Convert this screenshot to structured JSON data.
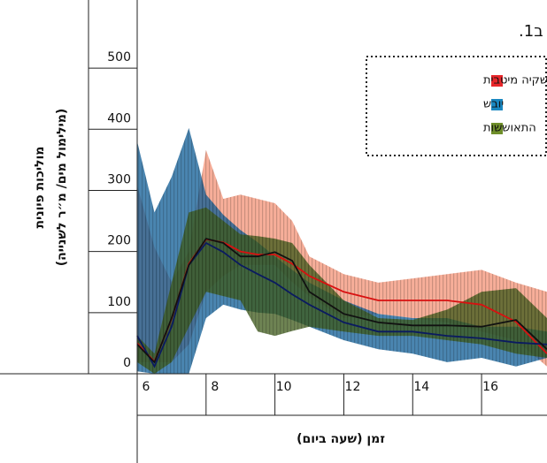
{
  "chart_data": {
    "type": "band-line",
    "title": "ב1.",
    "ylabel": [
      "מוליכות פיונית",
      "(מילימול מים/ מ״ר לשנייה)"
    ],
    "xlabel": "זמן (שעה ביום)",
    "x": [
      6,
      6.5,
      7,
      7.5,
      8,
      8.5,
      9,
      9.5,
      10,
      10.5,
      11,
      12,
      13,
      14,
      15,
      16,
      17,
      17.9
    ],
    "xlim": [
      6,
      17.9
    ],
    "xticks": [
      6,
      8,
      10,
      12,
      14,
      16
    ],
    "ylim": [
      0,
      610
    ],
    "yticks": [
      0,
      100,
      200,
      300,
      400,
      500
    ],
    "legend": "top-right",
    "series": [
      {
        "name": "השקיה מיטבית",
        "color": "#e8262a",
        "band_color": "#f59a80",
        "line_color": "#d81010",
        "values": [
          50,
          20,
          90,
          180,
          220,
          215,
          200,
          195,
          195,
          180,
          160,
          134,
          120,
          120,
          120,
          113,
          85,
          33
        ],
        "upper": [
          308,
          207,
          150,
          200,
          366,
          286,
          293,
          286,
          279,
          250,
          192,
          163,
          149,
          156,
          163,
          170,
          149,
          134
        ],
        "lower": [
          19,
          19,
          19,
          48,
          134,
          160,
          178,
          178,
          178,
          150,
          127,
          91,
          98,
          91,
          84,
          69,
          55,
          12
        ]
      },
      {
        "name": "יובש",
        "color": "#1a87c0",
        "band_color": "#0d5c96",
        "line_color": "#0a1a60",
        "values": [
          62,
          12,
          77,
          178,
          214,
          199,
          178,
          163,
          149,
          130,
          113,
          84,
          69,
          69,
          62,
          58,
          51,
          48
        ],
        "upper": [
          380,
          264,
          322,
          402,
          293,
          260,
          235,
          215,
          192,
          170,
          149,
          120,
          98,
          91,
          91,
          77,
          77,
          69
        ],
        "lower": [
          4,
          0,
          0,
          0,
          91,
          113,
          105,
          100,
          98,
          88,
          77,
          55,
          40,
          33,
          19,
          26,
          12,
          26
        ]
      },
      {
        "name": "התאוששות",
        "color": "#6f8f2a",
        "band_color": "#3d5a1a",
        "line_color": "#111111",
        "values": [
          48,
          19,
          91,
          178,
          221,
          214,
          192,
          192,
          199,
          185,
          134,
          98,
          84,
          79,
          79,
          77,
          88,
          40
        ],
        "upper": [
          62,
          33,
          149,
          264,
          272,
          250,
          228,
          225,
          221,
          214,
          178,
          120,
          91,
          88,
          105,
          134,
          140,
          91
        ],
        "lower": [
          19,
          0,
          19,
          77,
          134,
          127,
          120,
          69,
          62,
          70,
          77,
          69,
          62,
          62,
          55,
          48,
          33,
          26
        ]
      }
    ]
  }
}
